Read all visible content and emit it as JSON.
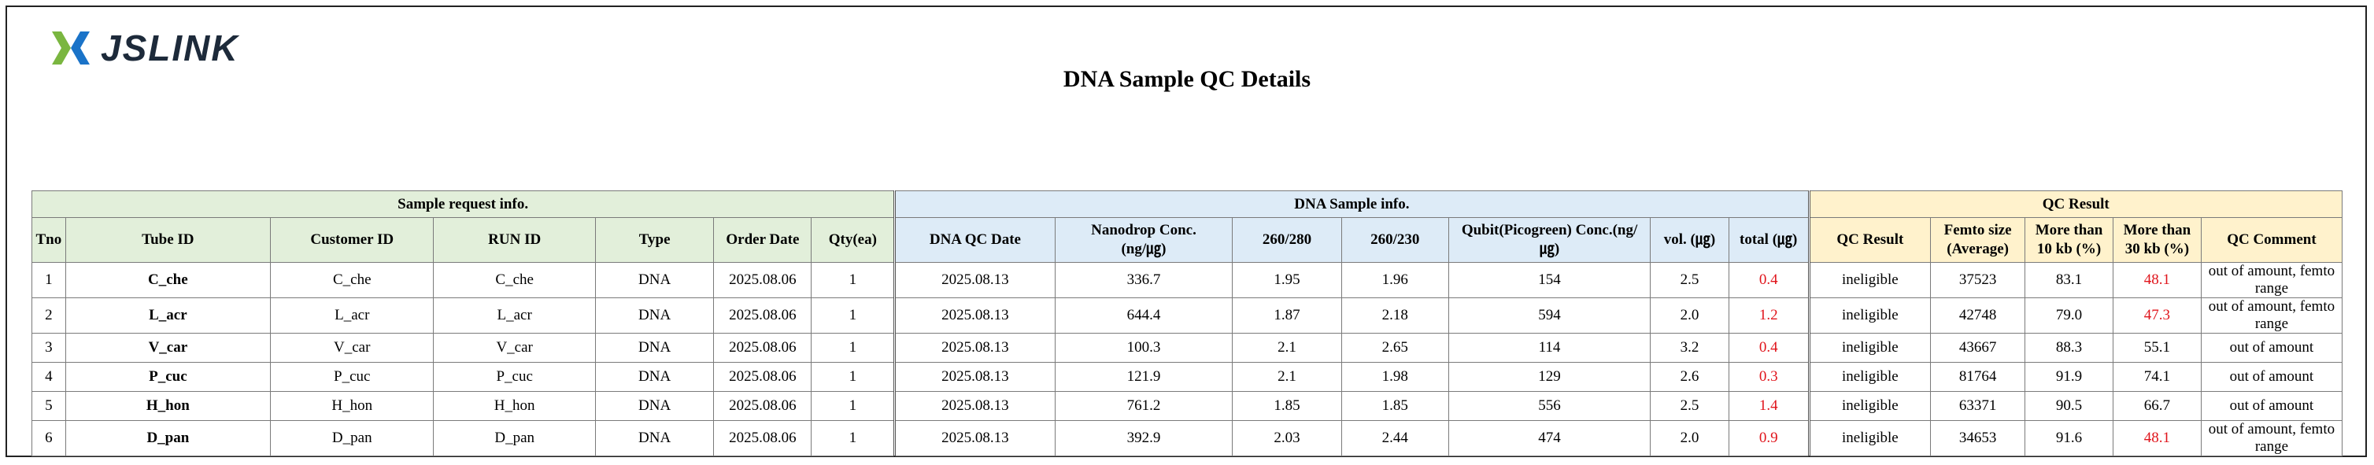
{
  "logo": {
    "text": "JSLINK",
    "colors": {
      "green": "#7ab640",
      "blue": "#1a73c8",
      "dark": "#1d2a3a"
    }
  },
  "title": "DNA Sample QC Details",
  "groups": {
    "request": "Sample request info.",
    "dna": "DNA Sample info.",
    "qc": "QC Result"
  },
  "headers": {
    "tno": "Tno",
    "tube_id": "Tube ID",
    "customer_id": "Customer ID",
    "run_id": "RUN ID",
    "type": "Type",
    "order_date": "Order Date",
    "qty": "Qty(ea)",
    "qc_date": "DNA QC Date",
    "nanodrop_1": "Nanodrop Conc.",
    "nanodrop_2": "(ng/㎍)",
    "r260_280": "260/280",
    "r260_230": "260/230",
    "qubit_1": "Qubit(Picogreen) Conc.(ng/",
    "qubit_2": "㎍)",
    "vol": "vol. (㎍)",
    "total": "total (㎍)",
    "qc_result": "QC Result",
    "femto_1": "Femto size",
    "femto_2": "(Average)",
    "m10_1": "More than",
    "m10_2": "10 kb (%)",
    "m30_1": "More than",
    "m30_2": "30 kb (%)",
    "qc_comment": "QC Comment"
  },
  "rows": [
    {
      "tno": "1",
      "tube_id": "C_che",
      "customer_id": "C_che",
      "run_id": "C_che",
      "type": "DNA",
      "order_date": "2025.08.06",
      "qty": "1",
      "qc_date": "2025.08.13",
      "nanodrop": "336.7",
      "r260_280": "1.95",
      "r260_230": "1.96",
      "qubit": "154",
      "vol": "2.5",
      "total": "0.4",
      "qc_result": "ineligible",
      "femto": "37523",
      "m10": "83.1",
      "m30": "48.1",
      "comment": "out of amount, femto range"
    },
    {
      "tno": "2",
      "tube_id": "L_acr",
      "customer_id": "L_acr",
      "run_id": "L_acr",
      "type": "DNA",
      "order_date": "2025.08.06",
      "qty": "1",
      "qc_date": "2025.08.13",
      "nanodrop": "644.4",
      "r260_280": "1.87",
      "r260_230": "2.18",
      "qubit": "594",
      "vol": "2.0",
      "total": "1.2",
      "qc_result": "ineligible",
      "femto": "42748",
      "m10": "79.0",
      "m30": "47.3",
      "comment": "out of amount, femto range"
    },
    {
      "tno": "3",
      "tube_id": "V_car",
      "customer_id": "V_car",
      "run_id": "V_car",
      "type": "DNA",
      "order_date": "2025.08.06",
      "qty": "1",
      "qc_date": "2025.08.13",
      "nanodrop": "100.3",
      "r260_280": "2.1",
      "r260_230": "2.65",
      "qubit": "114",
      "vol": "3.2",
      "total": "0.4",
      "qc_result": "ineligible",
      "femto": "43667",
      "m10": "88.3",
      "m30": "55.1",
      "comment": "out of amount"
    },
    {
      "tno": "4",
      "tube_id": "P_cuc",
      "customer_id": "P_cuc",
      "run_id": "P_cuc",
      "type": "DNA",
      "order_date": "2025.08.06",
      "qty": "1",
      "qc_date": "2025.08.13",
      "nanodrop": "121.9",
      "r260_280": "2.1",
      "r260_230": "1.98",
      "qubit": "129",
      "vol": "2.6",
      "total": "0.3",
      "qc_result": "ineligible",
      "femto": "81764",
      "m10": "91.9",
      "m30": "74.1",
      "comment": "out of amount"
    },
    {
      "tno": "5",
      "tube_id": "H_hon",
      "customer_id": "H_hon",
      "run_id": "H_hon",
      "type": "DNA",
      "order_date": "2025.08.06",
      "qty": "1",
      "qc_date": "2025.08.13",
      "nanodrop": "761.2",
      "r260_280": "1.85",
      "r260_230": "1.85",
      "qubit": "556",
      "vol": "2.5",
      "total": "1.4",
      "qc_result": "ineligible",
      "femto": "63371",
      "m10": "90.5",
      "m30": "66.7",
      "comment": "out of amount"
    },
    {
      "tno": "6",
      "tube_id": "D_pan",
      "customer_id": "D_pan",
      "run_id": "D_pan",
      "type": "DNA",
      "order_date": "2025.08.06",
      "qty": "1",
      "qc_date": "2025.08.13",
      "nanodrop": "392.9",
      "r260_280": "2.03",
      "r260_230": "2.44",
      "qubit": "474",
      "vol": "2.0",
      "total": "0.9",
      "qc_result": "ineligible",
      "femto": "34653",
      "m10": "91.6",
      "m30": "48.1",
      "comment": "out of amount, femto range"
    }
  ],
  "highlight": {
    "red_color": "#e0141b",
    "red_cells": {
      "total": [
        0,
        1,
        2,
        3,
        4,
        5
      ],
      "m30": [
        0,
        1,
        5
      ]
    }
  }
}
